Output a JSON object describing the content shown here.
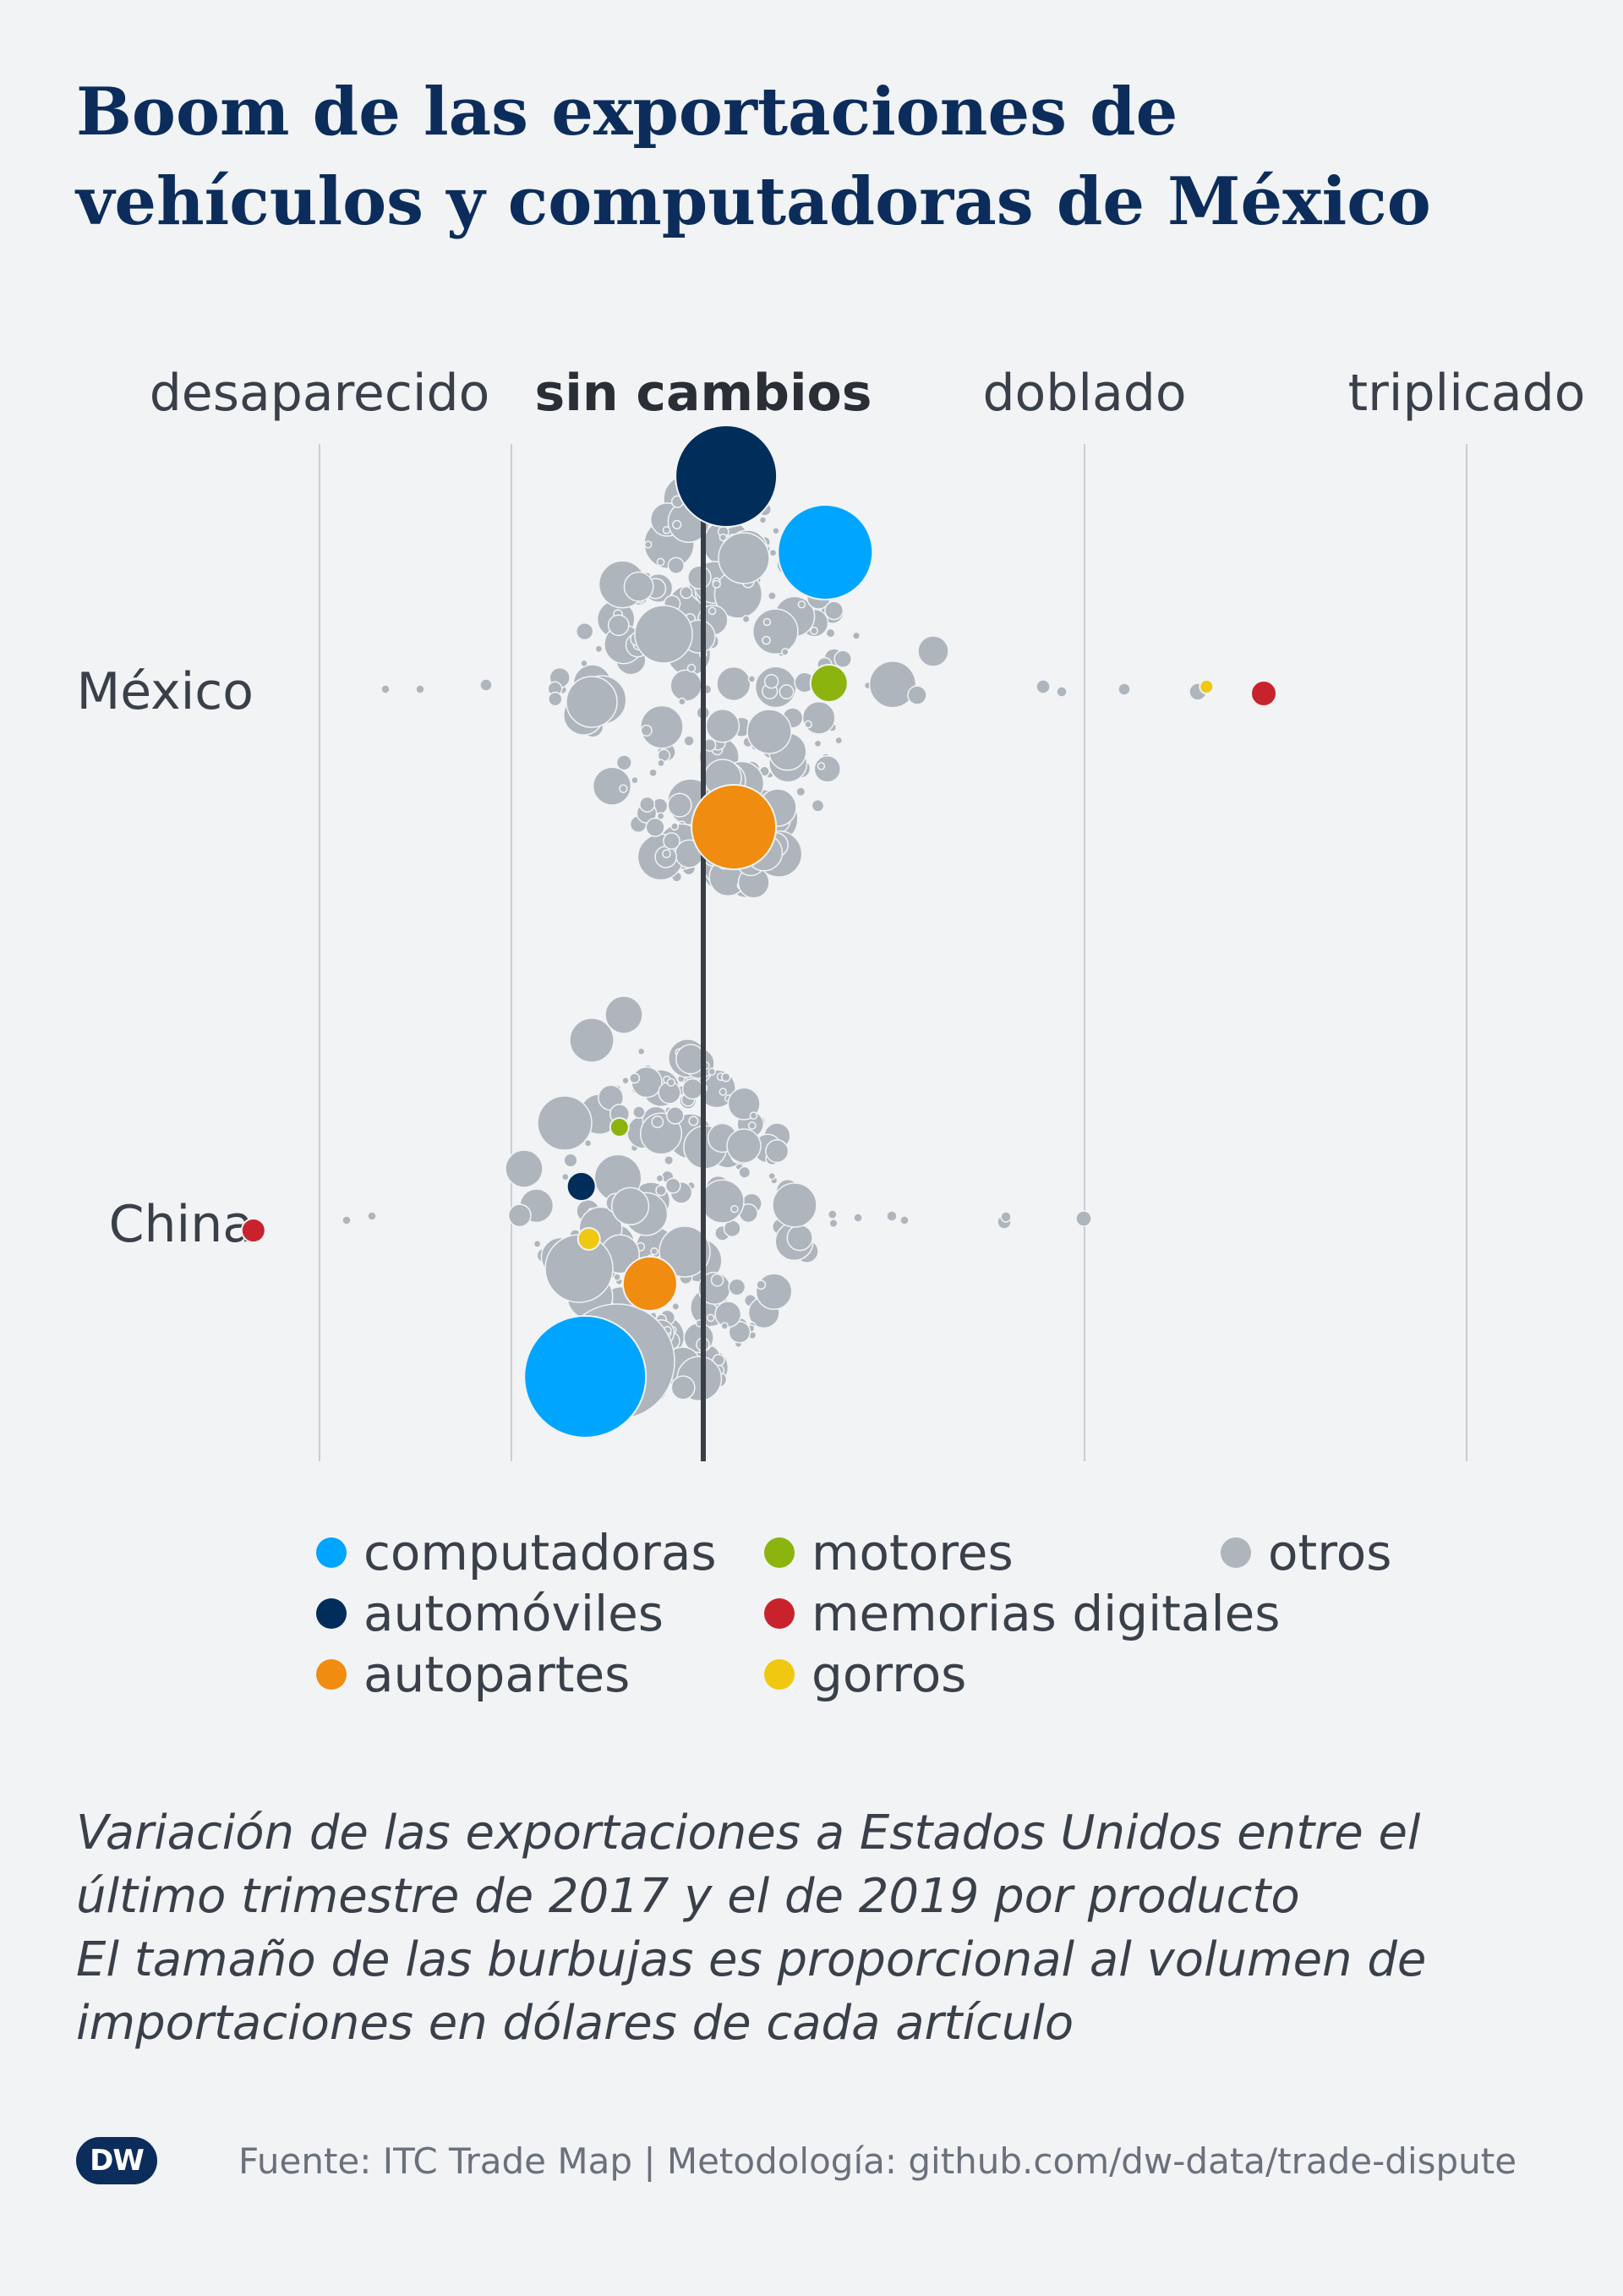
{
  "title_lines": [
    "Boom de las exportaciones de",
    "vehículos y computadoras de México"
  ],
  "chart_data": {
    "type": "scatter",
    "subtype": "beeswarm",
    "x_axis": {
      "tick_labels": [
        "desaparecido",
        "sin cambios",
        "doblado",
        "triplicado"
      ],
      "tick_values": [
        0,
        1,
        2,
        3
      ],
      "emphasized_tick": "sin cambios",
      "range": [
        -0.5,
        3
      ]
    },
    "rows": [
      "México",
      "China"
    ],
    "colors": {
      "computadoras": "#00a5ff",
      "automoviles": "#002d5a",
      "autopartes": "#f08c0f",
      "motores": "#8cb40f",
      "memorias_digitales": "#c8232d",
      "gorros": "#f0c80f",
      "otros": "#aeb5bc"
    },
    "highlighted_points": [
      {
        "row": "México",
        "category": "automoviles",
        "x": 1.06
      },
      {
        "row": "México",
        "category": "computadoras",
        "x": 1.32
      },
      {
        "row": "México",
        "category": "motores",
        "x": 1.33
      },
      {
        "row": "México",
        "category": "autopartes",
        "x": 1.08
      },
      {
        "row": "México",
        "category": "gorros",
        "x": 2.32
      },
      {
        "row": "México",
        "category": "memorias_digitales",
        "x": 2.47
      },
      {
        "row": "China",
        "category": "motores",
        "x": 0.78
      },
      {
        "row": "China",
        "category": "automoviles",
        "x": 0.68
      },
      {
        "row": "China",
        "category": "gorros",
        "x": 0.7
      },
      {
        "row": "China",
        "category": "memorias_digitales",
        "x": -0.18
      },
      {
        "row": "China",
        "category": "autopartes",
        "x": 0.86
      },
      {
        "row": "China",
        "category": "computadoras",
        "x": 0.69
      }
    ]
  },
  "legend": {
    "items": [
      {
        "label": "computadoras",
        "color": "#00a5ff"
      },
      {
        "label": "automóviles",
        "color": "#002d5a"
      },
      {
        "label": "autopartes",
        "color": "#f08c0f"
      },
      {
        "label": "motores",
        "color": "#8cb40f"
      },
      {
        "label": "memorias digitales",
        "color": "#c8232d"
      },
      {
        "label": "gorros",
        "color": "#f0c80f"
      },
      {
        "label": "otros",
        "color": "#aeb5bc"
      }
    ]
  },
  "note_lines": [
    "Variación de las exportaciones a Estados Unidos entre el",
    "último trimestre de 2017 y el de 2019 por producto",
    "El tamaño de las burbujas es proporcional al volumen de",
    "importaciones en dólares de cada artículo"
  ],
  "footer": {
    "logo_text": "DW",
    "source": "Fuente: ITC Trade Map | Metodología: github.com/dw-data/trade-dispute"
  }
}
